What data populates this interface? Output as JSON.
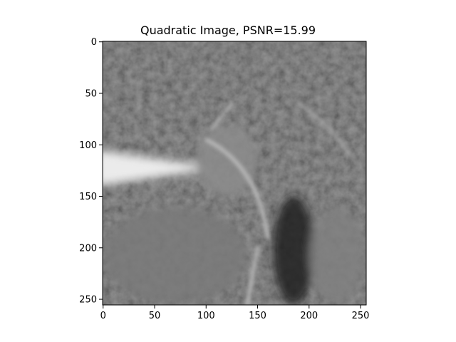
{
  "chart_data": {
    "type": "heatmap",
    "title": "Quadratic Image, PSNR=15.99",
    "xlabel": "",
    "ylabel": "",
    "xlim": [
      0,
      255
    ],
    "ylim": [
      255,
      0
    ],
    "colormap": "gray",
    "grid": false,
    "legend": "none",
    "xticks": [
      {
        "value": 0,
        "label": "0"
      },
      {
        "value": 50,
        "label": "50"
      },
      {
        "value": 100,
        "label": "100"
      },
      {
        "value": 150,
        "label": "150"
      },
      {
        "value": 200,
        "label": "200"
      },
      {
        "value": 250,
        "label": "250"
      }
    ],
    "yticks": [
      {
        "value": 0,
        "label": "0"
      },
      {
        "value": 50,
        "label": "50"
      },
      {
        "value": 100,
        "label": "100"
      },
      {
        "value": 150,
        "label": "150"
      },
      {
        "value": 200,
        "label": "200"
      },
      {
        "value": 250,
        "label": "250"
      }
    ],
    "image_regions": [
      {
        "name": "bright-streak",
        "x": [
          0,
          95
        ],
        "y": [
          105,
          140
        ],
        "tone": 0.92
      },
      {
        "name": "central-leaf-cluster",
        "x": [
          90,
          150
        ],
        "y": [
          80,
          150
        ],
        "tone": 0.55
      },
      {
        "name": "dark-trunk",
        "x": [
          165,
          205
        ],
        "y": [
          150,
          255
        ],
        "tone": 0.12
      },
      {
        "name": "lower-right-foliage",
        "x": [
          200,
          255
        ],
        "y": [
          160,
          255
        ],
        "tone": 0.5
      },
      {
        "name": "lower-left-textured-ground",
        "x": [
          0,
          140
        ],
        "y": [
          160,
          255
        ],
        "tone": 0.48
      }
    ]
  }
}
